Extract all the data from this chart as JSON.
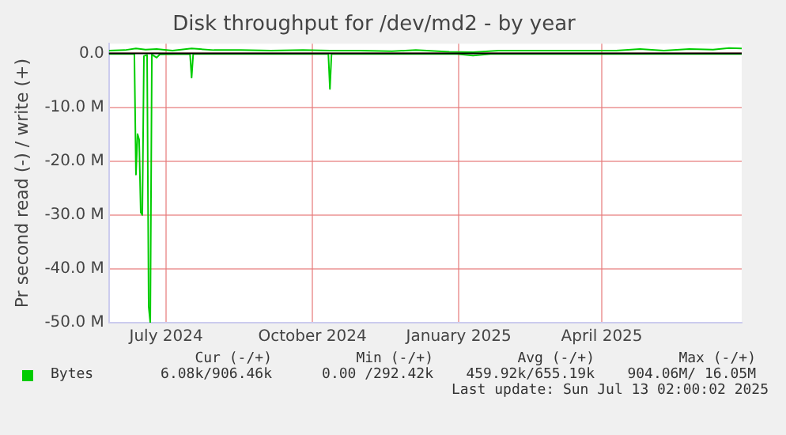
{
  "chart_data": {
    "type": "line",
    "title": "Disk throughput for /dev/md2 - by year",
    "ylabel": "Pr second read (-) / write (+)",
    "xlim": [
      "2024-06-10",
      "2025-07-13"
    ],
    "xticks": [
      {
        "value": "2024-07-16",
        "label": "July 2024"
      },
      {
        "value": "2024-10-16",
        "label": "October 2024"
      },
      {
        "value": "2025-01-16",
        "label": "January 2025"
      },
      {
        "value": "2025-04-16",
        "label": "April 2025"
      }
    ],
    "ylim": [
      -50,
      1.8
    ],
    "yticks": [
      {
        "value": -50,
        "label": "-50.0 M"
      },
      {
        "value": -40,
        "label": "-40.0 M"
      },
      {
        "value": -30,
        "label": "-30.0 M"
      },
      {
        "value": -20,
        "label": "-20.0 M"
      },
      {
        "value": -10,
        "label": "-10.0 M"
      },
      {
        "value": 0,
        "label": "0.0"
      }
    ],
    "grid": true,
    "legend": "bottom left",
    "ref_lines": [
      {
        "axis": "y",
        "value": 0,
        "color": "#000000"
      }
    ],
    "series": [
      {
        "name": "Bytes",
        "color": "#00cc00",
        "x": [
          "2024-06-10",
          "2024-06-20",
          "2024-06-27",
          "2024-07-03",
          "2024-07-10",
          "2024-07-20",
          "2024-08-01",
          "2024-08-15",
          "2024-09-01",
          "2024-09-20",
          "2024-10-10",
          "2024-10-27",
          "2024-11-15",
          "2024-12-05",
          "2024-12-20",
          "2025-01-10",
          "2025-01-25",
          "2025-02-10",
          "2025-03-01",
          "2025-03-20",
          "2025-04-10",
          "2025-04-25",
          "2025-05-10",
          "2025-05-25",
          "2025-06-10",
          "2025-06-25",
          "2025-07-05",
          "2025-07-13"
        ],
        "values": [
          0.5,
          0.6,
          0.9,
          0.7,
          0.8,
          0.5,
          0.9,
          0.6,
          0.6,
          0.5,
          0.6,
          0.5,
          0.5,
          0.4,
          0.6,
          0.3,
          0.2,
          0.5,
          0.5,
          0.5,
          0.5,
          0.5,
          0.8,
          0.5,
          0.8,
          0.7,
          1.0,
          0.9
        ]
      },
      {
        "color": "#00cc00",
        "x": [
          "2024-06-10",
          "2024-06-26",
          "2024-06-27",
          "2024-06-28",
          "2024-06-29",
          "2024-06-30",
          "2024-07-01",
          "2024-07-02",
          "2024-07-04",
          "2024-07-05",
          "2024-07-06",
          "2024-07-07",
          "2024-07-10",
          "2024-07-12",
          "2024-07-31",
          "2024-08-01",
          "2024-08-02",
          "2024-10-26",
          "2024-10-27",
          "2024-10-28",
          "2025-01-15",
          "2025-01-25",
          "2025-02-05",
          "2025-07-13"
        ],
        "values": [
          -0.1,
          -0.1,
          -22.5,
          -15,
          -16,
          -29.5,
          -30,
          -0.5,
          -0.3,
          -47,
          -50,
          -0.2,
          -0.8,
          -0.2,
          -0.1,
          -4.5,
          -0.1,
          -0.1,
          -6.6,
          -0.1,
          -0.1,
          -0.4,
          -0.1,
          -0.1
        ]
      }
    ],
    "annotations": [
      "Cur (-/+)",
      "Min (-/+)",
      "Avg (-/+)",
      "Max (-/+)",
      "6.08k/906.46k",
      "0.00 /292.42k",
      "459.92k/655.19k",
      "904.06M/ 16.05M",
      "Last update: Sun Jul 13 02:00:02 2025"
    ]
  }
}
